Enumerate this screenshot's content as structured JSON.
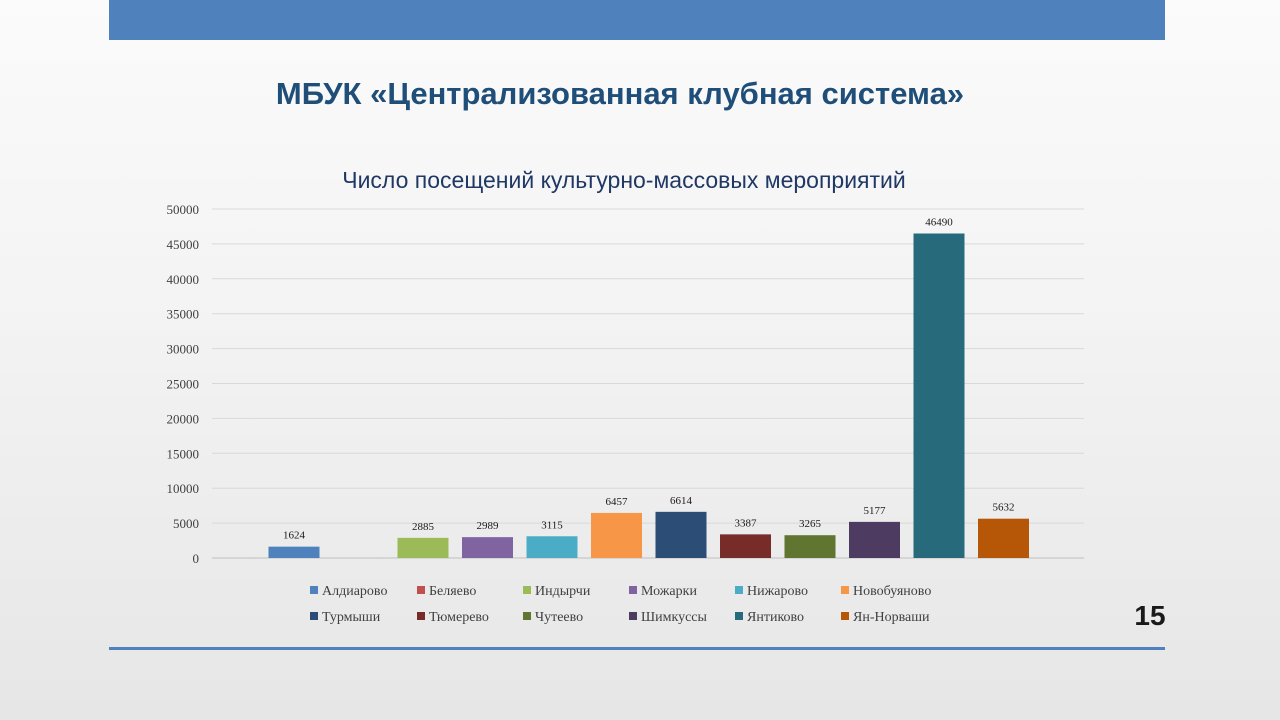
{
  "header": {
    "title": "МБУК «Централизованная клубная система»"
  },
  "page_number": "15",
  "chart_data": {
    "type": "bar",
    "title": "Число посещений культурно-массовых мероприятий",
    "xlabel": "",
    "ylabel": "",
    "ylim": [
      0,
      50000
    ],
    "yticks": [
      0,
      5000,
      10000,
      15000,
      20000,
      25000,
      30000,
      35000,
      40000,
      45000,
      50000
    ],
    "grid": true,
    "legend_position": "bottom",
    "series": [
      {
        "name": "Алдиарово",
        "value": 1624,
        "color": "#4f81bd"
      },
      {
        "name": "Беляево",
        "value": null,
        "color": "#c0504d"
      },
      {
        "name": "Индырчи",
        "value": 2885,
        "color": "#9bbb59"
      },
      {
        "name": "Можарки",
        "value": 2989,
        "color": "#8064a2"
      },
      {
        "name": "Нижарово",
        "value": 3115,
        "color": "#4bacc6"
      },
      {
        "name": "Новобуяново",
        "value": 6457,
        "color": "#f79646"
      },
      {
        "name": "Турмыши",
        "value": 6614,
        "color": "#2c4d75"
      },
      {
        "name": "Тюмерево",
        "value": 3387,
        "color": "#772c2a"
      },
      {
        "name": "Чутеево",
        "value": 3265,
        "color": "#5f7530"
      },
      {
        "name": "Шимкуссы",
        "value": 5177,
        "color": "#4d3b62"
      },
      {
        "name": "Янтиково",
        "value": 46490,
        "color": "#276a7c"
      },
      {
        "name": "Ян-Норваши",
        "value": 5632,
        "color": "#b65708"
      }
    ]
  }
}
